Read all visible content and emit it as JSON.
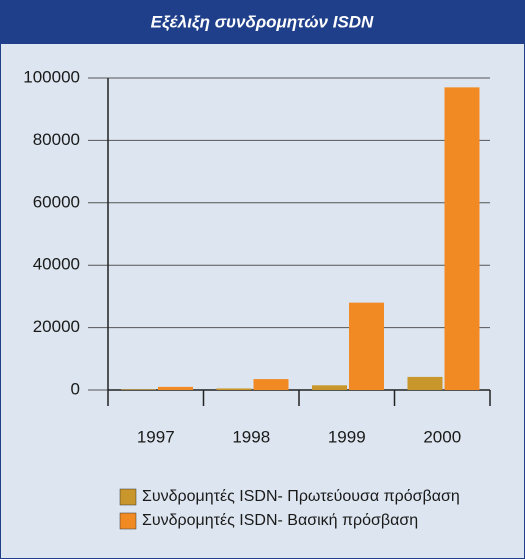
{
  "chart_data": {
    "type": "bar",
    "title": "Εξέλιξη συνδρομητών  ISDN",
    "categories": [
      "1997",
      "1998",
      "1999",
      "2000"
    ],
    "series": [
      {
        "name": "Συνδρομητές ISDN- Πρωτεύουσα πρόσβαση",
        "color": "#c8962a",
        "values": [
          200,
          500,
          1500,
          4200
        ]
      },
      {
        "name": "Συνδρομητές ISDN- Βασική πρόσβαση",
        "color": "#f28a24",
        "values": [
          1000,
          3500,
          28000,
          97000
        ]
      }
    ],
    "ylim": [
      0,
      100000
    ],
    "yticks": [
      0,
      20000,
      40000,
      60000,
      80000,
      100000
    ],
    "grid": true
  }
}
